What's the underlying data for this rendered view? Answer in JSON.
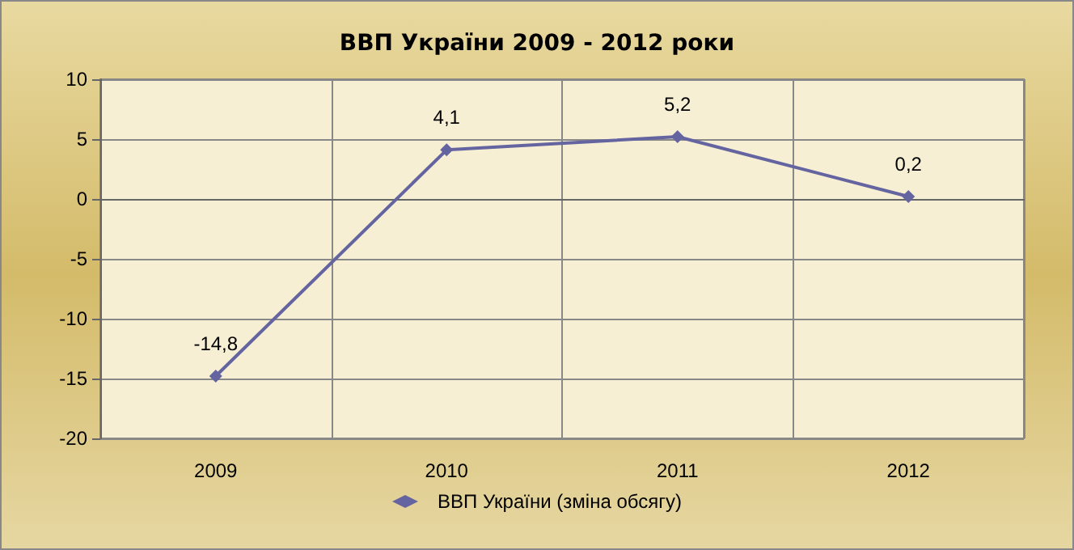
{
  "chart_data": {
    "type": "line",
    "title": "ВВП України 2009 - 2012 роки",
    "categories": [
      "2009",
      "2010",
      "2011",
      "2012"
    ],
    "series": [
      {
        "name": "ВВП України (зміна обсягу)",
        "color": "#6464a0",
        "values": [
          -14.8,
          4.1,
          5.2,
          0.2
        ],
        "value_labels": [
          "-14,8",
          "4,1",
          "5,2",
          "0,2"
        ]
      }
    ],
    "ylim": [
      -20,
      10
    ],
    "yticks": [
      -20,
      -15,
      -10,
      -5,
      0,
      5,
      10
    ],
    "grid": true,
    "legend": "bottom",
    "marker": "diamond"
  }
}
